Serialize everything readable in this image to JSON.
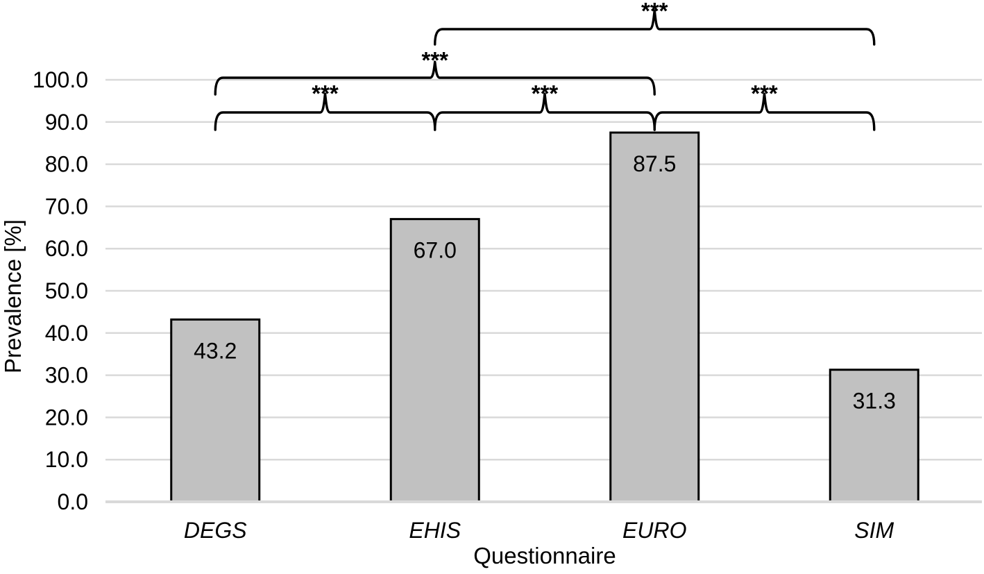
{
  "figure": {
    "description": "Bar chart of prevalence by questionnaire with pairwise significance brackets"
  },
  "chart_data": {
    "type": "bar",
    "title": "",
    "xlabel": "Questionnaire",
    "ylabel": "Prevalence [%]",
    "categories": [
      "DEGS",
      "EHIS",
      "EURO",
      "SIM"
    ],
    "values": [
      43.2,
      67.0,
      87.5,
      31.3
    ],
    "value_labels": [
      "43.2",
      "67.0",
      "87.5",
      "31.3"
    ],
    "ylim": [
      0,
      100
    ],
    "ytick_step": 10,
    "ytick_labels": [
      "0.0",
      "10.0",
      "20.0",
      "30.0",
      "40.0",
      "50.0",
      "60.0",
      "70.0",
      "80.0",
      "90.0",
      "100.0"
    ],
    "grid": true,
    "legend": "none",
    "colors": {
      "bar_fill": "#c1c1c1",
      "bar_border": "#000000",
      "gridline": "#d9d9d9",
      "baseline": "#d9d9d9",
      "bracket": "#000000",
      "text": "#000000"
    },
    "significance_brackets": [
      {
        "from": "EHIS",
        "to": "SIM",
        "label": "***",
        "level": 1
      },
      {
        "from": "DEGS",
        "to": "EURO",
        "label": "***",
        "level": 2
      },
      {
        "from": "DEGS",
        "to": "EHIS",
        "label": "***",
        "level": 3
      },
      {
        "from": "EHIS",
        "to": "EURO",
        "label": "***",
        "level": 3
      },
      {
        "from": "EURO",
        "to": "SIM",
        "label": "***",
        "level": 3
      }
    ]
  }
}
